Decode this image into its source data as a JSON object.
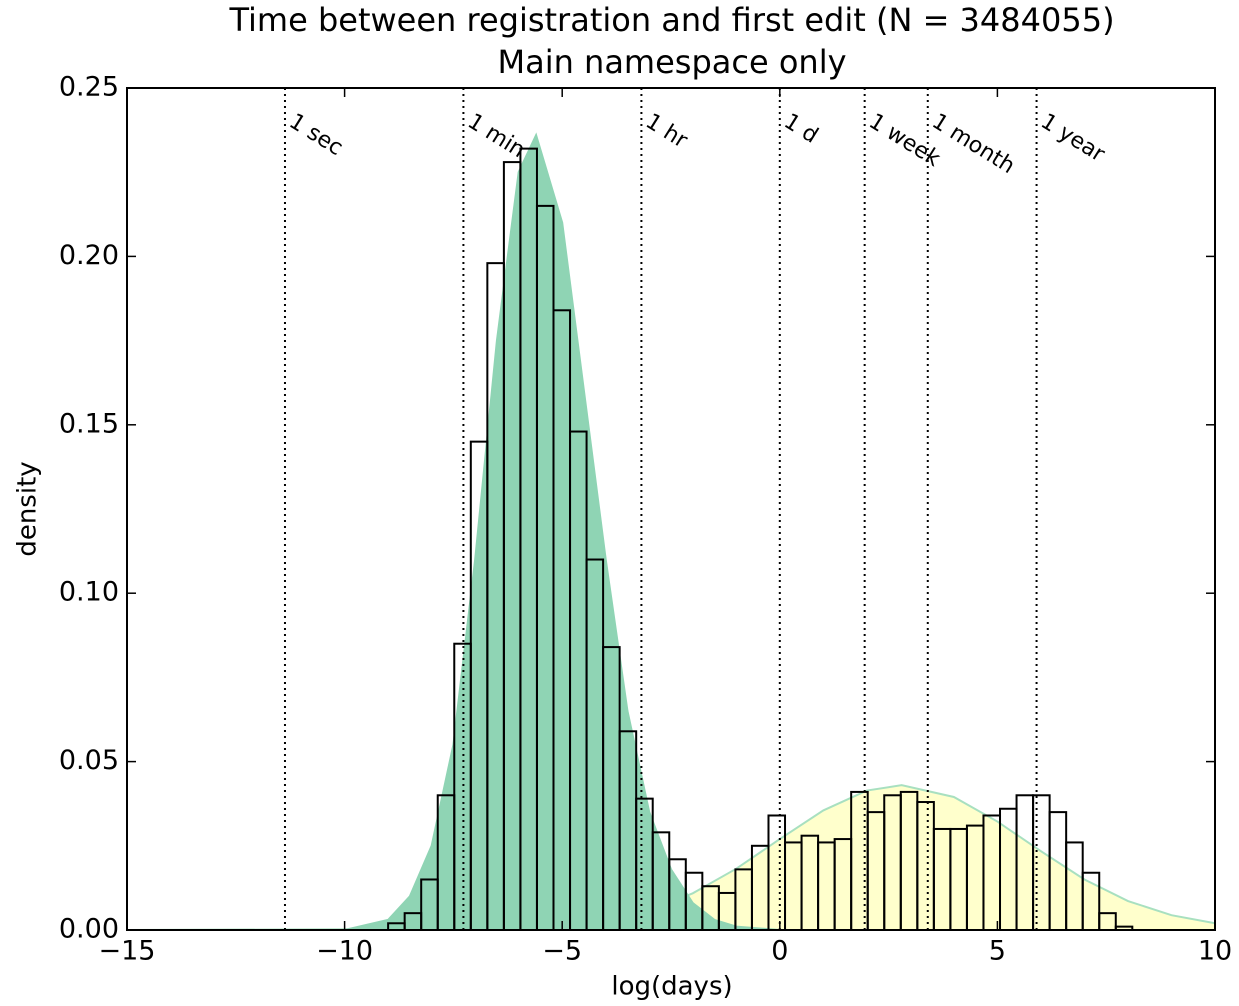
{
  "chart_data": {
    "type": "histogram",
    "title": "Time between registration and first edit (N = 3484055)",
    "subtitle": "Main namespace only",
    "x_label": "log(days)",
    "y_label": "density",
    "bins": [
      -9,
      -8.62,
      -8.24,
      -7.86,
      -7.48,
      -7.1,
      -6.72,
      -6.34,
      -5.96,
      -5.58,
      -5.2,
      -4.82,
      -4.44,
      -4.06,
      -3.68,
      -3.3,
      -2.92,
      -2.54,
      -2.16,
      -1.78,
      -1.4,
      -1.02,
      -0.64,
      -0.26,
      0.12,
      0.5,
      0.88,
      1.26,
      1.64,
      2.02,
      2.4,
      2.78,
      3.16,
      3.54,
      3.92,
      4.3,
      4.68,
      5.06,
      5.44,
      5.82,
      6.2,
      6.58,
      6.96,
      7.34,
      7.72,
      8.1
    ],
    "values": [
      0.002,
      0.005,
      0.015,
      0.04,
      0.085,
      0.145,
      0.198,
      0.228,
      0.232,
      0.215,
      0.184,
      0.148,
      0.11,
      0.084,
      0.059,
      0.039,
      0.029,
      0.021,
      0.017,
      0.013,
      0.011,
      0.018,
      0.025,
      0.034,
      0.026,
      0.028,
      0.026,
      0.027,
      0.041,
      0.035,
      0.04,
      0.041,
      0.038,
      0.03,
      0.03,
      0.031,
      0.034,
      0.036,
      0.04,
      0.04,
      0.035,
      0.026,
      0.017,
      0.005,
      0.001
    ],
    "curves": [
      {
        "color": "#ffffcc",
        "edge": "#a8e0c0",
        "x": [
          -15,
          -6,
          -5,
          -4,
          -3,
          -2,
          -1,
          0,
          1,
          2,
          2.8,
          4,
          5,
          6,
          7,
          8,
          9,
          10
        ],
        "y": [
          0,
          0.0004,
          0.0012,
          0.0028,
          0.0058,
          0.0109,
          0.0182,
          0.027,
          0.0355,
          0.0414,
          0.043,
          0.0395,
          0.0322,
          0.0234,
          0.015,
          0.0086,
          0.0044,
          0.002
        ]
      },
      {
        "color": "#8fd4b4",
        "edge": "#8fd4b4",
        "x": [
          -15,
          -10,
          -9,
          -8.5,
          -8,
          -7.5,
          -7,
          -6.5,
          -6,
          -5.6,
          -5,
          -4.5,
          -4,
          -3.5,
          -3,
          -2.5,
          -2,
          -1.5,
          -1,
          0,
          10
        ],
        "y": [
          0,
          0,
          0.003,
          0.01,
          0.025,
          0.055,
          0.11,
          0.175,
          0.225,
          0.236,
          0.21,
          0.16,
          0.11,
          0.065,
          0.035,
          0.018,
          0.008,
          0.003,
          0.001,
          0,
          0
        ]
      }
    ],
    "vlines": [
      {
        "x": -11.37,
        "label": "1 sec"
      },
      {
        "x": -7.27,
        "label": "1 min"
      },
      {
        "x": -3.18,
        "label": "1 hr"
      },
      {
        "x": 0,
        "label": "1 d"
      },
      {
        "x": 1.95,
        "label": "1 week"
      },
      {
        "x": 3.4,
        "label": "1 month"
      },
      {
        "x": 5.9,
        "label": "1 year"
      }
    ],
    "xlim": [
      -15,
      10
    ],
    "xticks": [
      {
        "value": -15,
        "label": "−15"
      },
      {
        "value": -10,
        "label": "−10"
      },
      {
        "value": -5,
        "label": "−5"
      },
      0,
      5,
      10
    ],
    "ylim": [
      0,
      0.25
    ],
    "yticks": [
      {
        "value": 0,
        "label": "0.00"
      },
      {
        "value": 0.05,
        "label": "0.05"
      },
      {
        "value": 0.1,
        "label": "0.10"
      },
      {
        "value": 0.15,
        "label": "0.15"
      },
      {
        "value": 0.2,
        "label": "0.20"
      },
      {
        "value": 0.25,
        "label": "0.25"
      }
    ]
  }
}
